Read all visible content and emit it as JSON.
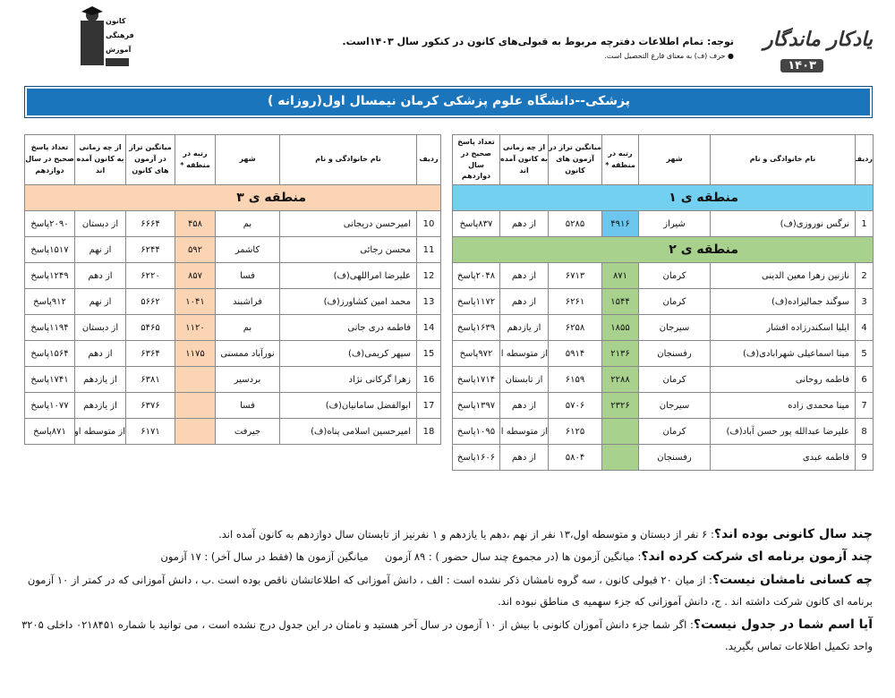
{
  "header": {
    "brand": "یادکار ماندگار",
    "brand_year": "۱۴۰۳",
    "notice": "توجه: تمام اطلاعات دفترچه مربوط به قبولی‌های کانون در کنکور سال ۱۴۰۳است.",
    "note": "● حرف (ف) به معنای فارغ التحصیل است.",
    "logo_lines": [
      "کانون",
      "فرهنگی",
      "آموزش"
    ]
  },
  "title": "پزشکی--دانشگاه علوم پزشکی کرمان نیمسال اول(روزانه )",
  "columns": [
    "ردیف",
    "نام خانوادگی و نام",
    "شهر",
    "رتبه در منطقه *",
    "میانگین تراز در آزمون های کانون",
    "از چه زمانی به کانون آمده اند",
    "تعداد پاسخ صحیح در سال دوازدهم"
  ],
  "tables": [
    {
      "sections": [
        {
          "label": "منطقه ی ۱",
          "color": "#73d0f0",
          "rank_color": "#6cc6ee",
          "rows": [
            [
              "1",
              "نرگس نوروزی(ف)",
              "شیراز",
              "۴۹۱۶",
              "۵۲۸۵",
              "از دهم",
              "۸۳۷پاسخ"
            ]
          ]
        },
        {
          "label": "منطقه ی ۲",
          "color": "#a9d18e",
          "rank_color": "#a9d18e",
          "rows": [
            [
              "2",
              "نازنین زهرا معین الدینی",
              "کرمان",
              "۸۷۱",
              "۶۷۱۳",
              "از دهم",
              "۲۰۴۸پاسخ"
            ],
            [
              "3",
              "سوگند جمالیزاده(ف)",
              "کرمان",
              "۱۵۴۴",
              "۶۲۶۱",
              "از دهم",
              "۱۱۷۲پاسخ"
            ],
            [
              "4",
              "ایلیا اسکندرزاده افشار",
              "سیرجان",
              "۱۸۵۵",
              "۶۲۵۸",
              "از یازدهم",
              "۱۶۳۹پاسخ"
            ],
            [
              "5",
              "مینا اسماعیلی شهرابادی(ف)",
              "رفسنجان",
              "۲۱۳۶",
              "۵۹۱۴",
              "از متوسطه اول",
              "۹۷۲پاسخ"
            ],
            [
              "6",
              "فاطمه روحانی",
              "کرمان",
              "۲۲۸۸",
              "۶۱۵۹",
              "از تابستان",
              "۱۷۱۴پاسخ"
            ],
            [
              "7",
              "مینا محمدی زاده",
              "سیرجان",
              "۲۳۲۶",
              "۵۷۰۶",
              "از دهم",
              "۱۳۹۷پاسخ"
            ],
            [
              "8",
              "علیرضا عبدالله پور حسن آباد(ف)",
              "کرمان",
              null,
              "۶۱۲۵",
              "از متوسطه اول",
              "۱۰۹۵پاسخ"
            ],
            [
              "9",
              "فاطمه عبدی",
              "رفسنجان",
              null,
              "۵۸۰۴",
              "از دهم",
              "۱۶۰۶پاسخ"
            ]
          ]
        }
      ]
    },
    {
      "sections": [
        {
          "label": "منطقه ی ۳",
          "color": "#fbd4b4",
          "rank_color": "#fbd4b4",
          "rows": [
            [
              "10",
              "امیرحسن دریجانی",
              "بم",
              "۴۵۸",
              "۶۶۶۴",
              "از دبستان",
              "۲۰۹۰پاسخ"
            ],
            [
              "11",
              "محسن رجائی",
              "کاشمر",
              "۵۹۲",
              "۶۲۴۴",
              "از نهم",
              "۱۵۱۷پاسخ"
            ],
            [
              "12",
              "علیرضا امراللهی(ف)",
              "فسا",
              "۸۵۷",
              "۶۲۲۰",
              "از دهم",
              "۱۲۴۹پاسخ"
            ],
            [
              "13",
              "محمد امین کشاورز(ف)",
              "فراشبند",
              "۱۰۴۱",
              "۵۶۶۲",
              "از نهم",
              "۹۱۲پاسخ"
            ],
            [
              "14",
              "فاطمه دری جانی",
              "بم",
              "۱۱۲۰",
              "۵۴۶۵",
              "از دبستان",
              "۱۱۹۴پاسخ"
            ],
            [
              "15",
              "سپهر کریمی(ف)",
              "نورآباد ممسنی",
              "۱۱۷۵",
              "۶۳۶۴",
              "از دهم",
              "۱۵۶۴پاسخ"
            ],
            [
              "16",
              "زهرا گرکانی نژاد",
              "بردسیر",
              null,
              "۶۳۸۱",
              "از یازدهم",
              "۱۷۴۱پاسخ"
            ],
            [
              "17",
              "ابوالفضل سامانیان(ف)",
              "فسا",
              null,
              "۶۳۷۶",
              "از یازدهم",
              "۱۰۷۷پاسخ"
            ],
            [
              "18",
              "امیرحسین اسلامی پناه(ف)",
              "جیرفت",
              null,
              "۶۱۷۱",
              "از متوسطه اول",
              "۸۷۱پاسخ"
            ]
          ]
        }
      ]
    }
  ],
  "footer": [
    {
      "question": "چند سال کانونی بوده اند؟",
      "answer": ": ۶ نفر از دبستان و متوسطه اول،۱۳ نفر از نهم ،دهم یا یازدهم و ۱ نفرنیز از تابستان سال دوازدهم به کانون آمده اند."
    },
    {
      "question": "چند آزمون برنامه ای شرکت کرده اند؟",
      "answer": ": میانگین آزمون ها (در مجموع چند سال حضور ) : ۸۹ آزمون     میانگین آزمون ها (فقط در سال آخر) : ۱۷ آزمون"
    },
    {
      "question": "چه کسانی نامشان نیست؟",
      "answer": ": از میان ۲۰ قبولی کانون ، سه گروه نامشان ذکر نشده است : الف ، دانش آموزانی که اطلاعاتشان ناقص بوده است .ب ، دانش آموزانی که در کمتر از ۱۰ آزمون برنامه ای کانون شرکت داشته اند . ج، دانش آموزانی که جزء سهمیه ی مناطق نبوده اند."
    },
    {
      "question": "آیا اسم شما در جدول نیست؟",
      "answer": ": اگر شما جزء دانش آموزان کانونی با بیش از ۱۰ آزمون در سال آخر هستید و نامتان در این جدول درج نشده است ، می توانید با شماره ۰۲۱۸۴۵۱ داخلی ۳۲۰۵ واحد تکمیل اطلاعات تماس بگیرید."
    }
  ]
}
